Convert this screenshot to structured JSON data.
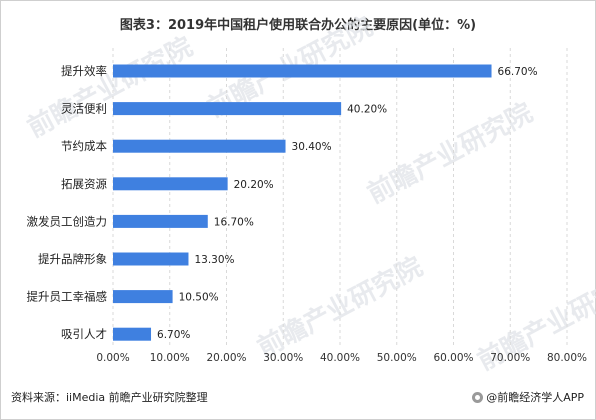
{
  "chart_data": {
    "type": "bar",
    "orientation": "horizontal",
    "title": "图表3：2019年中国租户使用联合办公的主要原因(单位：%)",
    "categories": [
      "提升效率",
      "灵活便利",
      "节约成本",
      "拓展资源",
      "激发员工创造力",
      "提升品牌形象",
      "提升员工幸福感",
      "吸引人才"
    ],
    "values": [
      66.7,
      40.2,
      30.4,
      20.2,
      16.7,
      13.3,
      10.5,
      6.7
    ],
    "value_labels": [
      "66.70%",
      "40.20%",
      "30.40%",
      "20.20%",
      "16.70%",
      "13.30%",
      "10.50%",
      "6.70%"
    ],
    "xlim": [
      0,
      80
    ],
    "xticks": [
      "0.00%",
      "10.00%",
      "20.00%",
      "30.00%",
      "40.00%",
      "50.00%",
      "60.00%",
      "70.00%",
      "80.00%"
    ],
    "grid": "vertical-dashed",
    "legend": "none",
    "bar_color": "#3f80e0"
  },
  "footer": {
    "source": "资料来源：iiMedia 前瞻产业研究院整理",
    "brand": "@前瞻经济学人APP"
  },
  "watermark": {
    "text": "前瞻产业研究院"
  }
}
